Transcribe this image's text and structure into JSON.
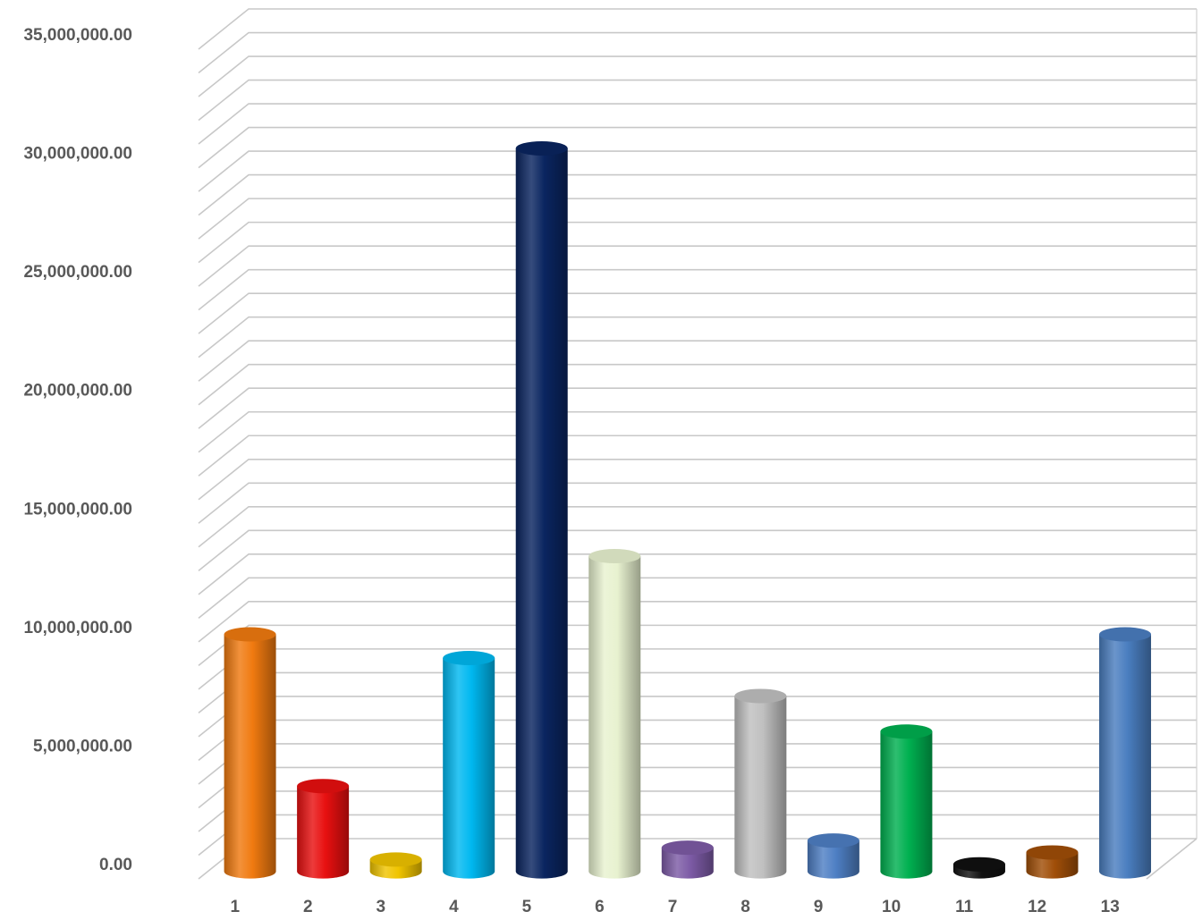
{
  "chart_data": {
    "type": "bar",
    "style": "3d-cylinder",
    "title": "",
    "xlabel": "",
    "ylabel": "",
    "categories": [
      "1",
      "2",
      "3",
      "4",
      "5",
      "6",
      "7",
      "8",
      "9",
      "10",
      "11",
      "12",
      "13"
    ],
    "values": [
      10000000,
      3600000,
      500000,
      9000000,
      30500000,
      13300000,
      1000000,
      7400000,
      1300000,
      5900000,
      300000,
      800000,
      10000000
    ],
    "colors": [
      "#F07A10",
      "#E81010",
      "#F0C400",
      "#00B8F0",
      "#0A2560",
      "#E8F2D0",
      "#7D5BA6",
      "#C0C0C0",
      "#4E7FC4",
      "#00B050",
      "#111111",
      "#A04E08",
      "#4A7EC0"
    ],
    "ylim": [
      0,
      35000000
    ],
    "yticks": [
      0,
      5000000,
      10000000,
      15000000,
      20000000,
      25000000,
      30000000,
      35000000
    ],
    "ytick_labels": [
      "0.00",
      "5,000,000.00",
      "10,000,000.00",
      "15,000,000.00",
      "20,000,000.00",
      "25,000,000.00",
      "30,000,000.00",
      "35,000,000.00"
    ],
    "minor_gridlines_per_major": 5,
    "grid": true,
    "legend": "none"
  }
}
